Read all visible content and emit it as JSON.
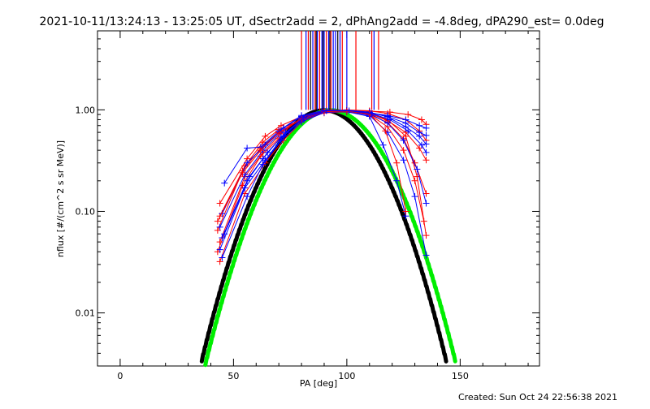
{
  "chart_data": {
    "type": "line",
    "title": "2021-10-11/13:24:13 - 13:25:05 UT, dSectr2add = 2, dPhAng2add = -4.8deg, dPA290_est=  0.0deg",
    "xlabel": "PA [deg]",
    "ylabel": "nflux [#/(cm^2 s sr MeV)]",
    "footer": "Created: Sun Oct 24 22:56:38 2021",
    "xlim": [
      -10,
      185
    ],
    "ylim": [
      0.003,
      6.0
    ],
    "yscale": "log",
    "grid": false,
    "legend": "none",
    "x_ticks": [
      {
        "value": 0,
        "label": "0"
      },
      {
        "value": 50,
        "label": "50"
      },
      {
        "value": 100,
        "label": "100"
      },
      {
        "value": 150,
        "label": "150"
      }
    ],
    "y_ticks": [
      {
        "value": 1.0,
        "label": "1.00"
      },
      {
        "value": 0.1,
        "label": "0.10"
      },
      {
        "value": 0.01,
        "label": "0.01"
      }
    ],
    "series": [
      {
        "color": "#ff0000",
        "marker": "+",
        "points": [
          [
            44,
            0.12
          ],
          [
            56,
            0.33
          ],
          [
            64,
            0.55
          ],
          [
            71,
            0.7
          ],
          [
            80,
            0.86
          ],
          [
            90,
            0.95
          ],
          [
            100,
            0.95
          ],
          [
            110,
            0.9
          ],
          [
            118,
            0.75
          ],
          [
            125,
            0.52
          ],
          [
            130,
            0.3
          ],
          [
            135,
            0.15
          ]
        ]
      },
      {
        "color": "#ff0000",
        "marker": "+",
        "points": [
          [
            44,
            0.09
          ],
          [
            55,
            0.28
          ],
          [
            63,
            0.48
          ],
          [
            70,
            0.64
          ],
          [
            80,
            0.8
          ],
          [
            90,
            0.93
          ],
          [
            100,
            0.96
          ],
          [
            110,
            0.92
          ],
          [
            118,
            0.8
          ],
          [
            126,
            0.55
          ],
          [
            131,
            0.22
          ],
          [
            135,
            0.058
          ]
        ]
      },
      {
        "color": "#ff0000",
        "marker": "+",
        "points": [
          [
            43,
            0.065
          ],
          [
            54,
            0.25
          ],
          [
            62,
            0.42
          ],
          [
            70,
            0.6
          ],
          [
            80,
            0.82
          ],
          [
            90,
            0.97
          ],
          [
            100,
            1.0
          ],
          [
            110,
            0.98
          ],
          [
            118,
            0.92
          ],
          [
            126,
            0.8
          ],
          [
            132,
            0.62
          ],
          [
            135,
            0.5
          ]
        ]
      },
      {
        "color": "#ff0000",
        "marker": "+",
        "points": [
          [
            44,
            0.05
          ],
          [
            55,
            0.22
          ],
          [
            63,
            0.38
          ],
          [
            71,
            0.58
          ],
          [
            80,
            0.84
          ],
          [
            90,
            1.0
          ],
          [
            100,
            0.99
          ],
          [
            110,
            0.97
          ],
          [
            119,
            0.95
          ],
          [
            127,
            0.9
          ],
          [
            133,
            0.8
          ],
          [
            135,
            0.72
          ]
        ]
      },
      {
        "color": "#ff0000",
        "marker": "+",
        "points": [
          [
            43,
            0.04
          ],
          [
            54,
            0.18
          ],
          [
            62,
            0.35
          ],
          [
            70,
            0.52
          ],
          [
            80,
            0.78
          ],
          [
            90,
            0.98
          ],
          [
            100,
            0.97
          ],
          [
            110,
            0.9
          ],
          [
            118,
            0.68
          ],
          [
            125,
            0.4
          ],
          [
            130,
            0.2
          ],
          [
            134,
            0.08
          ]
        ]
      },
      {
        "color": "#ff0000",
        "marker": "+",
        "points": [
          [
            44,
            0.032
          ],
          [
            55,
            0.15
          ],
          [
            64,
            0.3
          ],
          [
            72,
            0.5
          ],
          [
            80,
            0.76
          ],
          [
            90,
            0.96
          ],
          [
            100,
            0.99
          ],
          [
            110,
            0.93
          ],
          [
            118,
            0.78
          ],
          [
            126,
            0.6
          ],
          [
            132,
            0.42
          ],
          [
            135,
            0.32
          ]
        ]
      },
      {
        "color": "#0000ff",
        "marker": "+",
        "points": [
          [
            46,
            0.19
          ],
          [
            56,
            0.42
          ],
          [
            62,
            0.43
          ],
          [
            70,
            0.62
          ],
          [
            80,
            0.88
          ],
          [
            90,
            0.99
          ],
          [
            100,
            0.98
          ],
          [
            110,
            0.88
          ],
          [
            118,
            0.6
          ],
          [
            125,
            0.32
          ],
          [
            130,
            0.14
          ],
          [
            135,
            0.037
          ]
        ]
      },
      {
        "color": "#0000ff",
        "marker": "+",
        "points": [
          [
            45,
            0.095
          ],
          [
            56,
            0.3
          ],
          [
            64,
            0.45
          ],
          [
            72,
            0.66
          ],
          [
            80,
            0.86
          ],
          [
            90,
            0.97
          ],
          [
            100,
            0.99
          ],
          [
            110,
            0.95
          ],
          [
            118,
            0.85
          ],
          [
            126,
            0.68
          ],
          [
            132,
            0.55
          ],
          [
            135,
            0.46
          ]
        ]
      },
      {
        "color": "#0000ff",
        "marker": "+",
        "points": [
          [
            44,
            0.07
          ],
          [
            55,
            0.23
          ],
          [
            63,
            0.4
          ],
          [
            71,
            0.6
          ],
          [
            80,
            0.82
          ],
          [
            90,
            0.96
          ],
          [
            100,
            0.97
          ],
          [
            110,
            0.93
          ],
          [
            118,
            0.88
          ],
          [
            126,
            0.8
          ],
          [
            132,
            0.7
          ],
          [
            135,
            0.66
          ]
        ]
      },
      {
        "color": "#0000ff",
        "marker": "+",
        "points": [
          [
            45,
            0.055
          ],
          [
            56,
            0.2
          ],
          [
            63,
            0.33
          ],
          [
            71,
            0.54
          ],
          [
            80,
            0.8
          ],
          [
            90,
            0.95
          ],
          [
            100,
            0.96
          ],
          [
            110,
            0.86
          ],
          [
            116,
            0.45
          ],
          [
            122,
            0.2
          ],
          [
            126,
            0.09
          ]
        ]
      },
      {
        "color": "#0000ff",
        "marker": "+",
        "points": [
          [
            44,
            0.042
          ],
          [
            55,
            0.17
          ],
          [
            64,
            0.32
          ],
          [
            72,
            0.55
          ],
          [
            80,
            0.79
          ],
          [
            90,
            0.96
          ],
          [
            100,
            0.98
          ],
          [
            110,
            0.92
          ],
          [
            118,
            0.74
          ],
          [
            125,
            0.5
          ],
          [
            131,
            0.26
          ],
          [
            135,
            0.12
          ]
        ]
      },
      {
        "color": "#0000ff",
        "marker": "+",
        "points": [
          [
            45,
            0.035
          ],
          [
            56,
            0.14
          ],
          [
            63,
            0.29
          ],
          [
            71,
            0.5
          ],
          [
            80,
            0.76
          ],
          [
            90,
            0.94
          ],
          [
            100,
            0.97
          ],
          [
            110,
            0.94
          ],
          [
            118,
            0.86
          ],
          [
            126,
            0.74
          ],
          [
            132,
            0.6
          ],
          [
            135,
            0.56
          ]
        ]
      },
      {
        "color": "#ff0000",
        "marker": "+",
        "points": [
          [
            43,
            0.08
          ],
          [
            54,
            0.24
          ],
          [
            62,
            0.4
          ],
          [
            70,
            0.59
          ],
          [
            80,
            0.81
          ],
          [
            90,
            0.96
          ],
          [
            100,
            0.97
          ],
          [
            110,
            0.91
          ],
          [
            117,
            0.62
          ],
          [
            122,
            0.3
          ],
          [
            126,
            0.1
          ]
        ]
      },
      {
        "color": "#0000ff",
        "marker": "+",
        "points": [
          [
            46,
            0.06
          ],
          [
            57,
            0.22
          ],
          [
            65,
            0.38
          ],
          [
            73,
            0.6
          ],
          [
            81,
            0.84
          ],
          [
            91,
            0.98
          ],
          [
            101,
            0.98
          ],
          [
            111,
            0.92
          ],
          [
            119,
            0.8
          ],
          [
            127,
            0.62
          ],
          [
            133,
            0.45
          ],
          [
            135,
            0.38
          ]
        ]
      }
    ],
    "fits": [
      {
        "color": "#000000",
        "style": "thick dashed",
        "center": 90,
        "width": 16.0
      },
      {
        "color": "#00ee00",
        "style": "thick dashed",
        "center": 93,
        "width": 16.3
      }
    ],
    "vertical_markers": [
      {
        "color": "#ff0000",
        "x": [
          80,
          83,
          86,
          88,
          91,
          93,
          98,
          104,
          111,
          114
        ]
      },
      {
        "color": "#0000ff",
        "x": [
          82,
          85,
          87,
          89,
          90,
          92,
          94,
          95,
          97,
          100,
          112
        ]
      },
      {
        "color": "#000000",
        "x": [
          84,
          86.5,
          89.5,
          92.5,
          96
        ]
      }
    ]
  }
}
